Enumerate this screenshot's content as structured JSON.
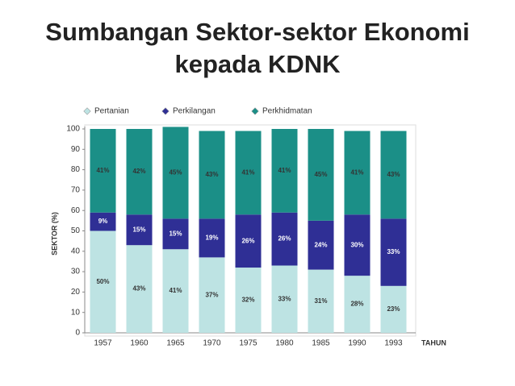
{
  "chart_data": {
    "type": "stacked-bar",
    "title": "Sumbangan Sektor-sektor Ekonomi kepada KDNK",
    "y_label": "SEKTOR (%)",
    "x_label": "TAHUN",
    "categories": [
      "1957",
      "1960",
      "1965",
      "1970",
      "1975",
      "1980",
      "1985",
      "1990",
      "1993"
    ],
    "series": [
      {
        "name": "Pertanian",
        "color": "#bde3e3",
        "values": [
          50,
          43,
          41,
          37,
          32,
          33,
          31,
          28,
          23
        ],
        "value_labels": [
          "50%",
          "43%",
          "41%",
          "37%",
          "32%",
          "33%",
          "31%",
          "28%",
          "23%"
        ]
      },
      {
        "name": "Perkilangan",
        "color": "#2f2f95",
        "values": [
          9,
          15,
          15,
          19,
          26,
          26,
          24,
          30,
          33
        ],
        "value_labels": [
          "9%",
          "15%",
          "15%",
          "19%",
          "26%",
          "26%",
          "24%",
          "30%",
          "33%"
        ]
      },
      {
        "name": "Perkhidmatan",
        "color": "#1b8f87",
        "values": [
          41,
          42,
          45,
          43,
          41,
          41,
          45,
          41,
          43
        ],
        "value_labels": [
          "41%",
          "42%",
          "45%",
          "43%",
          "41%",
          "41%",
          "45%",
          "41%",
          "43%"
        ]
      }
    ],
    "ylim": [
      0,
      100
    ],
    "yticks": [
      0,
      10,
      20,
      30,
      40,
      50,
      60,
      70,
      80,
      90,
      100
    ],
    "grid": false
  }
}
